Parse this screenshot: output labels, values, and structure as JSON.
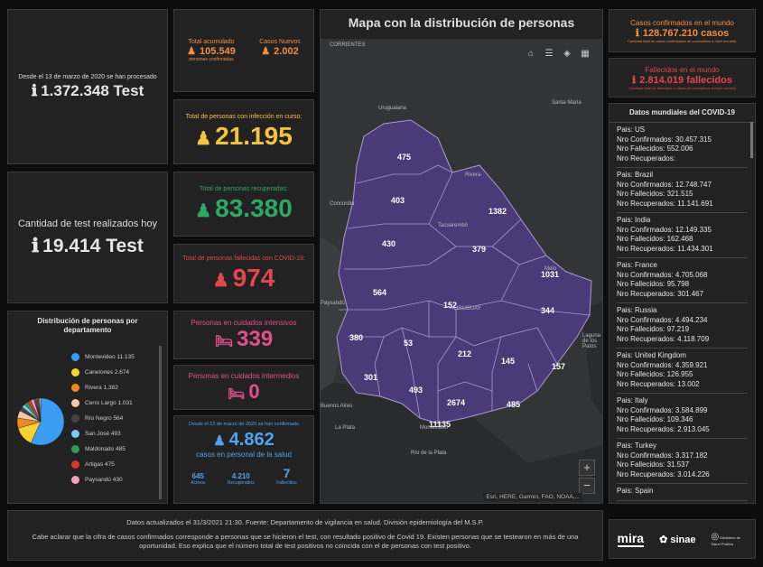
{
  "tests_total": {
    "caption": "Desde el 13 de marzo de 2020 se han procesado",
    "value": "1.372.348 Test"
  },
  "tests_today": {
    "caption": "Cantidad de test realizados hoy",
    "value": "19.414 Test"
  },
  "acumulado": {
    "label": "Total acumulado",
    "value": "105.549",
    "sub": "personas confirmadas"
  },
  "nuevos": {
    "label": "Casos Nuevos",
    "value": "2.002"
  },
  "en_curso": {
    "label": "Total de personas con infección en curso:",
    "value": "21.195"
  },
  "recuperadas": {
    "label": "Total de personas recuperadas:",
    "value": "83.380"
  },
  "fallecidas": {
    "label": "Total de personas fallecidas con COVID-19:",
    "value": "974"
  },
  "intensivos": {
    "label": "Personas en cuidados intensivos",
    "value": "339"
  },
  "intermedios": {
    "label": "Personas en cuidados intermedios",
    "value": "0"
  },
  "salud": {
    "caption": "Desde el 13 de marzo de 2020 se han confirmado",
    "value": "4.862",
    "sub": "casos en personal de la salud",
    "activos": "645",
    "activos_label": "Activos",
    "recuperados": "4.210",
    "recuperados_label": "Recuperados",
    "fallecidos": "7",
    "fallecidos_label": "Fallecidos"
  },
  "dept": {
    "title": "Distribución de personas por departamento",
    "items": [
      {
        "name": "Montevideo",
        "value": "11.135",
        "color": "#3c9cf2"
      },
      {
        "name": "Canelones",
        "value": "2.674",
        "color": "#f5d432"
      },
      {
        "name": "Rivera",
        "value": "1.382",
        "color": "#f0891e"
      },
      {
        "name": "Cerro Largo",
        "value": "1.031",
        "color": "#f6c8a8"
      },
      {
        "name": "Río Negro",
        "value": "564",
        "color": "#444444"
      },
      {
        "name": "San José",
        "value": "493",
        "color": "#7ec8f5"
      },
      {
        "name": "Maldonado",
        "value": "485",
        "color": "#2f9c57"
      },
      {
        "name": "Artigas",
        "value": "475",
        "color": "#d9362e"
      },
      {
        "name": "Paysandú",
        "value": "430",
        "color": "#f0a0b8"
      }
    ]
  },
  "map": {
    "title": "Mapa con la distribución de personas",
    "attribution": "Esri, HERE, Garmin, FAO, NOAA,...",
    "zoom_in": "+",
    "zoom_out": "−",
    "labels": [
      "475",
      "403",
      "1382",
      "430",
      "379",
      "1031",
      "564",
      "152",
      "344",
      "380",
      "53",
      "212",
      "145",
      "157",
      "301",
      "493",
      "2674",
      "485",
      "11135"
    ],
    "places": [
      "CORRIENTES",
      "Uruguaiana",
      "Santa María",
      "Rivera",
      "Concordia",
      "Tacuarembó",
      "Melo",
      "URUGUAY",
      "Paysandú",
      "Buenos Aires",
      "La Plata",
      "Montevideo",
      "Río de la Plata",
      "Laguna de los Patos"
    ]
  },
  "world_confirmed": {
    "label": "Casos confirmados en el mundo",
    "value": "128.767.210 casos",
    "sub": "Cantidad total de casos confirmados de coronavirus a nivel mundial."
  },
  "world_deaths": {
    "label": "Fallecidos en el mundo",
    "value": "2.814.019 fallecidos",
    "sub": "Cantidad total de fallecidos a causa de coronavirus a nivel mundial"
  },
  "world_list": {
    "title": "Datos mundiales del COVID-19",
    "countries": [
      {
        "pais": "Pais: US",
        "conf": "Nro Confirmados: 30.457.315",
        "fall": "Nro Fallecidos: 552.006",
        "rec": "Nro Recuperados:"
      },
      {
        "pais": "Pais: Brazil",
        "conf": "Nro Confirmados: 12.748.747",
        "fall": "Nro Fallecidos: 321.515",
        "rec": "Nro Recuperados: 11.141.691"
      },
      {
        "pais": "Pais: India",
        "conf": "Nro Confirmados: 12.149.335",
        "fall": "Nro Fallecidos: 162.468",
        "rec": "Nro Recuperados: 11.434.301"
      },
      {
        "pais": "Pais: France",
        "conf": "Nro Confirmados: 4.705.068",
        "fall": "Nro Fallecidos: 95.798",
        "rec": "Nro Recuperados: 301.467"
      },
      {
        "pais": "Pais: Russia",
        "conf": "Nro Confirmados: 4.494.234",
        "fall": "Nro Fallecidos: 97.219",
        "rec": "Nro Recuperados: 4.118.709"
      },
      {
        "pais": "Pais: United Kingdom",
        "conf": "Nro Confirmados: 4.359.921",
        "fall": "Nro Fallecidos: 126.955",
        "rec": "Nro Recuperados: 13.002"
      },
      {
        "pais": "Pais: Italy",
        "conf": "Nro Confirmados: 3.584.899",
        "fall": "Nro Fallecidos: 109.346",
        "rec": "Nro Recuperados: 2.913.045"
      },
      {
        "pais": "Pais: Turkey",
        "conf": "Nro Confirmados: 3.317.182",
        "fall": "Nro Fallecidos: 31.537",
        "rec": "Nro Recuperados: 3.014.226"
      },
      {
        "pais": "Pais: Spain",
        "conf": "",
        "fall": "",
        "rec": ""
      }
    ]
  },
  "footer": {
    "line1": "Datos actualizados el 31/3/2021 21:30. Fuente: Departamento de vigilancia en salud. División epidemiología del M.S.P.",
    "line2": "Cabe aclarar que la cifra de casos confirmados corresponde a personas que se hicieron el test, con resultado positivo de Covid 19. Existen personas que se testearon en más de una oportunidad. Eso explica que el número total de test positivos no coincida con el de personas con test positivo.",
    "logo_mira": "mira",
    "logo_sinae": "sinae",
    "logo_msp": "Ministerio de Salud Pública"
  },
  "colors": {
    "orange": "#f08d45",
    "yellow": "#f5c342",
    "green": "#2fa866",
    "red": "#e2474e",
    "pink": "#e2508c",
    "blue": "#4fa3f2",
    "map_fill": "#4a3a78"
  },
  "icons": [
    "info-icon",
    "person-icon",
    "bed-icon",
    "home-icon",
    "list-icon",
    "layers-icon",
    "basemap-icon"
  ]
}
